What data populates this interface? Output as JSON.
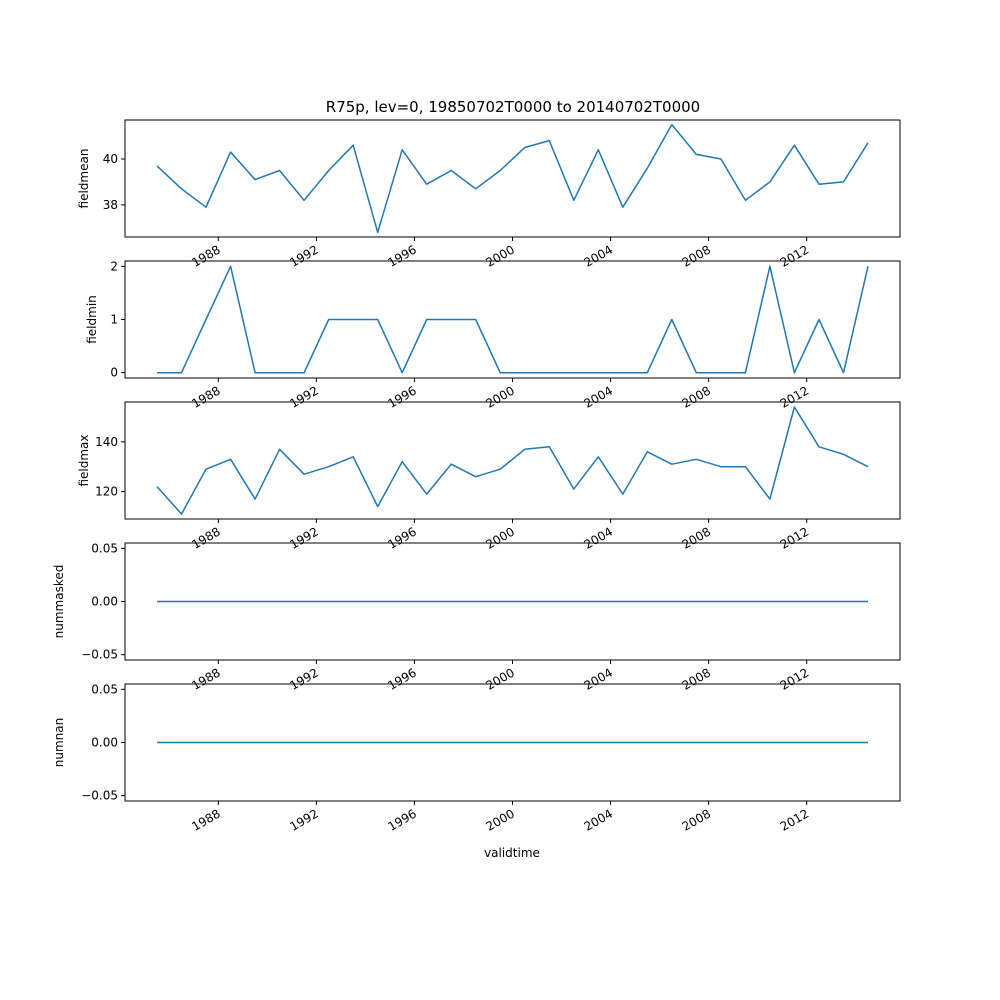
{
  "chart_data": {
    "type": "line",
    "title": "R75p, lev=0, 19850702T0000 to 20140702T0000",
    "xlabel": "validtime",
    "x": [
      "1985-07-02",
      "1986-07-02",
      "1987-07-02",
      "1988-07-02",
      "1989-07-02",
      "1990-07-02",
      "1991-07-02",
      "1992-07-02",
      "1993-07-02",
      "1994-07-02",
      "1995-07-02",
      "1996-07-02",
      "1997-07-02",
      "1998-07-02",
      "1999-07-02",
      "2000-07-02",
      "2001-07-02",
      "2002-07-02",
      "2003-07-02",
      "2004-07-02",
      "2005-07-02",
      "2006-07-02",
      "2007-07-02",
      "2008-07-02",
      "2009-07-02",
      "2010-07-02",
      "2011-07-02",
      "2012-07-02",
      "2013-07-02",
      "2014-07-02"
    ],
    "xticks": [
      {
        "label": "1988",
        "date": "1988-01-01"
      },
      {
        "label": "1992",
        "date": "1992-01-01"
      },
      {
        "label": "1996",
        "date": "1996-01-01"
      },
      {
        "label": "2000",
        "date": "2000-01-01"
      },
      {
        "label": "2004",
        "date": "2004-01-01"
      },
      {
        "label": "2008",
        "date": "2008-01-01"
      },
      {
        "label": "2012",
        "date": "2012-01-01"
      }
    ],
    "xlim": [
      "1984-03-12",
      "2015-10-22"
    ],
    "grid": false,
    "subplots": [
      {
        "ylabel": "fieldmean",
        "ylim": [
          36.6,
          41.7
        ],
        "yticks": [
          {
            "value": 38,
            "label": "38"
          },
          {
            "value": 40,
            "label": "40"
          }
        ],
        "values": [
          39.7,
          38.7,
          37.9,
          40.3,
          39.1,
          39.5,
          38.2,
          39.5,
          40.6,
          36.8,
          40.4,
          38.9,
          39.5,
          38.7,
          39.5,
          40.5,
          40.8,
          38.2,
          40.4,
          37.9,
          39.6,
          41.5,
          40.2,
          40.0,
          38.2,
          39.0,
          40.6,
          38.9,
          39.0,
          40.7
        ]
      },
      {
        "ylabel": "fieldmin",
        "ylim": [
          -0.1,
          2.1
        ],
        "yticks": [
          {
            "value": 0,
            "label": "0"
          },
          {
            "value": 1,
            "label": "1"
          },
          {
            "value": 2,
            "label": "2"
          }
        ],
        "values": [
          0,
          0,
          1,
          2,
          0,
          0,
          0,
          1,
          1,
          1,
          0,
          1,
          1,
          1,
          0,
          0,
          0,
          0,
          0,
          0,
          0,
          1,
          0,
          0,
          0,
          2,
          0,
          1,
          0,
          2
        ]
      },
      {
        "ylabel": "fieldmax",
        "ylim": [
          109,
          156
        ],
        "yticks": [
          {
            "value": 120,
            "label": "120"
          },
          {
            "value": 140,
            "label": "140"
          }
        ],
        "values": [
          122,
          111,
          129,
          133,
          117,
          137,
          127,
          130,
          134,
          114,
          132,
          119,
          131,
          126,
          129,
          137,
          138,
          121,
          134,
          119,
          136,
          131,
          133,
          130,
          130,
          117,
          154,
          138,
          135,
          130
        ]
      },
      {
        "ylabel": "nummasked",
        "ylim": [
          -0.055,
          0.055
        ],
        "yticks": [
          {
            "value": -0.05,
            "label": "−0.05"
          },
          {
            "value": 0,
            "label": "0.00"
          },
          {
            "value": 0.05,
            "label": "0.05"
          }
        ],
        "values": [
          0,
          0,
          0,
          0,
          0,
          0,
          0,
          0,
          0,
          0,
          0,
          0,
          0,
          0,
          0,
          0,
          0,
          0,
          0,
          0,
          0,
          0,
          0,
          0,
          0,
          0,
          0,
          0,
          0,
          0
        ]
      },
      {
        "ylabel": "numnan",
        "ylim": [
          -0.055,
          0.055
        ],
        "yticks": [
          {
            "value": -0.05,
            "label": "−0.05"
          },
          {
            "value": 0,
            "label": "0.00"
          },
          {
            "value": 0.05,
            "label": "0.05"
          }
        ],
        "values": [
          0,
          0,
          0,
          0,
          0,
          0,
          0,
          0,
          0,
          0,
          0,
          0,
          0,
          0,
          0,
          0,
          0,
          0,
          0,
          0,
          0,
          0,
          0,
          0,
          0,
          0,
          0,
          0,
          0,
          0
        ]
      }
    ]
  }
}
